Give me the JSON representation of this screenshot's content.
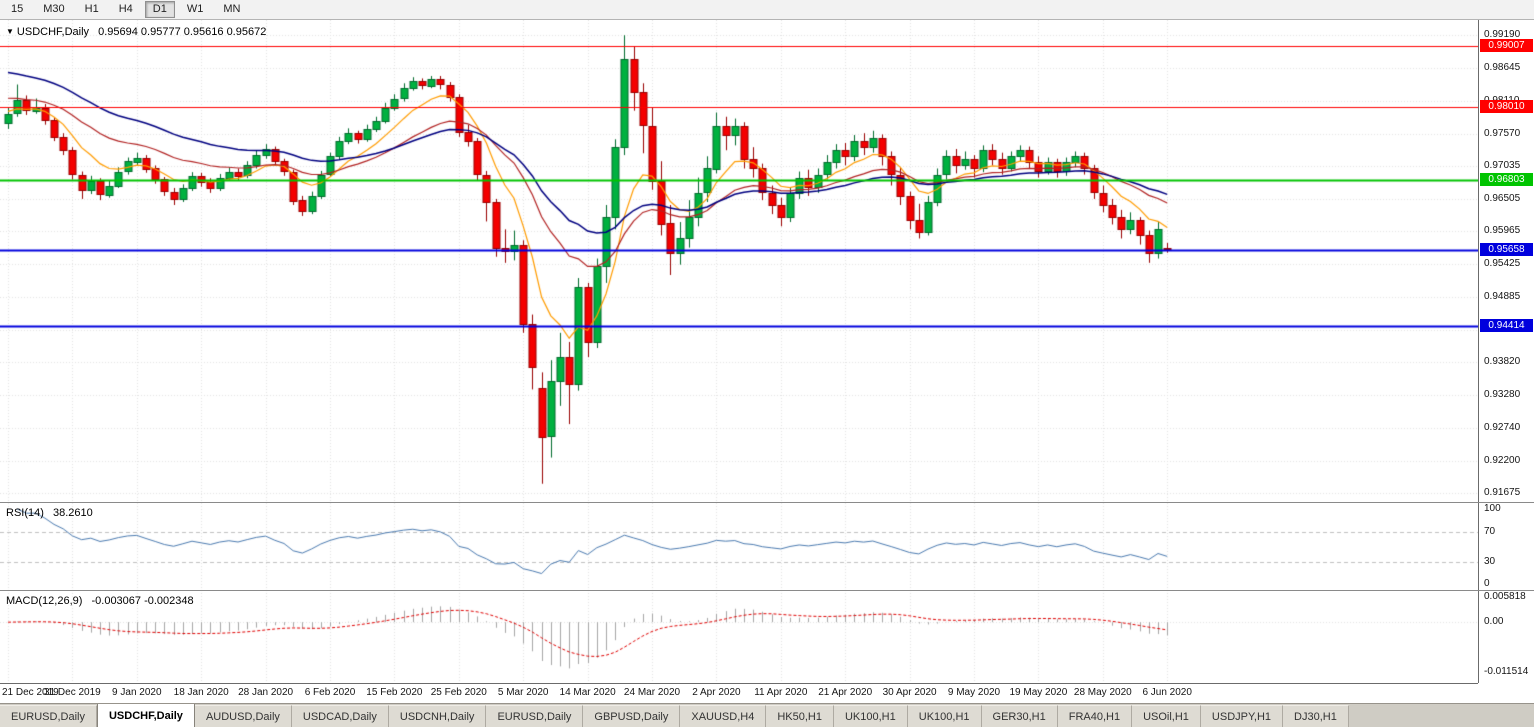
{
  "toolbar": {
    "periods": [
      {
        "label": "15",
        "active": false
      },
      {
        "label": "M30",
        "active": false
      },
      {
        "label": "H1",
        "active": false
      },
      {
        "label": "H4",
        "active": false
      },
      {
        "label": "D1",
        "active": true
      },
      {
        "label": "W1",
        "active": false
      },
      {
        "label": "MN",
        "active": false
      }
    ]
  },
  "chart": {
    "dropdown_glyph": "▼",
    "symbol_label": "USDCHF,Daily",
    "ohlc": "0.95694 0.95777 0.95616 0.95672"
  },
  "chart_data": {
    "type": "candlestick",
    "symbol": "USDCHF",
    "timeframe": "Daily",
    "ohlc_display": {
      "open": "0.95694",
      "high": "0.95777",
      "low": "0.95616",
      "close": "0.95672"
    },
    "y_axis": {
      "top_price": 0.9944,
      "bottom_price": 0.9152,
      "ticks": [
        "0.99190",
        "0.98645",
        "0.98110",
        "0.97570",
        "0.97035",
        "0.96505",
        "0.95965",
        "0.95425",
        "0.94885",
        "0.94345",
        "0.93820",
        "0.93280",
        "0.92740",
        "0.92200",
        "0.91675"
      ]
    },
    "x_axis": {
      "candles_per_label": 7,
      "labels": [
        "21 Dec 2019",
        "31 Dec 2019",
        "9 Jan 2020",
        "18 Jan 2020",
        "28 Jan 2020",
        "6 Feb 2020",
        "15 Feb 2020",
        "25 Feb 2020",
        "5 Mar 2020",
        "14 Mar 2020",
        "24 Mar 2020",
        "2 Apr 2020",
        "11 Apr 2020",
        "21 Apr 2020",
        "30 Apr 2020",
        "9 May 2020",
        "19 May 2020",
        "28 May 2020",
        "6 Jun 2020"
      ]
    },
    "hlines": [
      {
        "value": 0.99007,
        "label": "0.99007",
        "color": "#ff0000",
        "width": 1.2
      },
      {
        "value": 0.9801,
        "label": "0.98010",
        "color": "#ff0000",
        "width": 1.2
      },
      {
        "value": 0.96803,
        "label": "0.96803",
        "color": "#00c400",
        "width": 2
      },
      {
        "value": 0.95658,
        "label": "0.95658",
        "color": "#0000dd",
        "width": 2
      },
      {
        "value": 0.94414,
        "label": "0.94414",
        "color": "#0000dd",
        "width": 2
      }
    ],
    "moving_averages": [
      {
        "name": "fast",
        "period": 8,
        "color": "#ff9c00",
        "seed": 0.9795,
        "width": 1.2
      },
      {
        "name": "medium",
        "period": 21,
        "color": "#b22222",
        "seed": 0.9818,
        "width": 1.2
      },
      {
        "name": "slow",
        "period": 34,
        "color": "#000080",
        "seed": 0.9862,
        "width": 1.5
      }
    ],
    "rsi": {
      "label": "RSI(14)",
      "value_text": "38.2610",
      "period": 14,
      "color": "#4a7ab0",
      "level_lines": [
        70,
        30
      ],
      "scale_labels": [
        "100",
        "70",
        "30",
        "0"
      ]
    },
    "macd": {
      "label": "MACD(12,26,9)",
      "values_text": "-0.003067 -0.002348",
      "fast": 12,
      "slow": 26,
      "signal": 9,
      "scale_labels": [
        "0.005818",
        "0.00",
        "-0.011514"
      ],
      "scale_max": 0.005818,
      "scale_min": -0.011514,
      "hist_color": "#a6a6a6",
      "signal_color": "#e00000"
    },
    "style": {
      "up": {
        "fill": "#00b140",
        "stroke": "#006b2d"
      },
      "down": {
        "fill": "#f40000",
        "stroke": "#990000"
      },
      "grid": "#e4e4e4"
    },
    "candles": [
      [
        0.9775,
        0.98,
        0.9765,
        0.979
      ],
      [
        0.979,
        0.9838,
        0.9785,
        0.9812
      ],
      [
        0.9812,
        0.982,
        0.9788,
        0.9795
      ],
      [
        0.9795,
        0.9815,
        0.979,
        0.98
      ],
      [
        0.98,
        0.9806,
        0.9772,
        0.978
      ],
      [
        0.978,
        0.9784,
        0.9745,
        0.9752
      ],
      [
        0.9752,
        0.9758,
        0.9722,
        0.973
      ],
      [
        0.973,
        0.9735,
        0.9682,
        0.969
      ],
      [
        0.969,
        0.9695,
        0.965,
        0.9665
      ],
      [
        0.9665,
        0.9688,
        0.9658,
        0.968
      ],
      [
        0.968,
        0.9684,
        0.9648,
        0.9658
      ],
      [
        0.9658,
        0.968,
        0.9652,
        0.9672
      ],
      [
        0.9672,
        0.9702,
        0.9668,
        0.9695
      ],
      [
        0.9695,
        0.9718,
        0.969,
        0.9712
      ],
      [
        0.9712,
        0.9726,
        0.9705,
        0.9718
      ],
      [
        0.9718,
        0.9722,
        0.9693,
        0.97
      ],
      [
        0.97,
        0.9705,
        0.9675,
        0.9682
      ],
      [
        0.9682,
        0.9686,
        0.9655,
        0.9662
      ],
      [
        0.9662,
        0.9668,
        0.964,
        0.965
      ],
      [
        0.965,
        0.9674,
        0.9645,
        0.9668
      ],
      [
        0.9668,
        0.9694,
        0.9663,
        0.9688
      ],
      [
        0.9688,
        0.9693,
        0.967,
        0.9678
      ],
      [
        0.9678,
        0.9684,
        0.966,
        0.9668
      ],
      [
        0.9668,
        0.9691,
        0.9663,
        0.9685
      ],
      [
        0.9685,
        0.9702,
        0.968,
        0.9695
      ],
      [
        0.9695,
        0.97,
        0.9681,
        0.9688
      ],
      [
        0.9688,
        0.9712,
        0.9684,
        0.9705
      ],
      [
        0.9705,
        0.9729,
        0.97,
        0.9722
      ],
      [
        0.9722,
        0.974,
        0.9716,
        0.9732
      ],
      [
        0.9732,
        0.9736,
        0.9705,
        0.9712
      ],
      [
        0.9712,
        0.9716,
        0.9688,
        0.9695
      ],
      [
        0.9695,
        0.9698,
        0.964,
        0.9648
      ],
      [
        0.9648,
        0.9655,
        0.9622,
        0.963
      ],
      [
        0.963,
        0.9662,
        0.9625,
        0.9655
      ],
      [
        0.9655,
        0.9696,
        0.965,
        0.969
      ],
      [
        0.969,
        0.9726,
        0.9686,
        0.972
      ],
      [
        0.972,
        0.9752,
        0.9715,
        0.9745
      ],
      [
        0.9745,
        0.9766,
        0.974,
        0.9758
      ],
      [
        0.9758,
        0.9762,
        0.9741,
        0.9748
      ],
      [
        0.9748,
        0.9772,
        0.9744,
        0.9765
      ],
      [
        0.9765,
        0.9785,
        0.976,
        0.9778
      ],
      [
        0.9778,
        0.9808,
        0.9774,
        0.98
      ],
      [
        0.98,
        0.9822,
        0.9795,
        0.9815
      ],
      [
        0.9815,
        0.984,
        0.981,
        0.9832
      ],
      [
        0.9832,
        0.985,
        0.9828,
        0.9843
      ],
      [
        0.9843,
        0.9848,
        0.983,
        0.9836
      ],
      [
        0.9836,
        0.9852,
        0.9832,
        0.9847
      ],
      [
        0.9847,
        0.9852,
        0.983,
        0.9838
      ],
      [
        0.9838,
        0.9842,
        0.981,
        0.9818
      ],
      [
        0.9818,
        0.9822,
        0.9752,
        0.976
      ],
      [
        0.976,
        0.9772,
        0.9736,
        0.9745
      ],
      [
        0.9745,
        0.975,
        0.968,
        0.969
      ],
      [
        0.969,
        0.9696,
        0.9613,
        0.9645
      ],
      [
        0.9645,
        0.965,
        0.9555,
        0.957
      ],
      [
        0.957,
        0.96,
        0.9545,
        0.9565
      ],
      [
        0.9565,
        0.9598,
        0.9549,
        0.9575
      ],
      [
        0.9575,
        0.9582,
        0.943,
        0.9445
      ],
      [
        0.9445,
        0.946,
        0.9337,
        0.9375
      ],
      [
        0.934,
        0.9365,
        0.9182,
        0.926
      ],
      [
        0.926,
        0.9385,
        0.9225,
        0.935
      ],
      [
        0.935,
        0.943,
        0.931,
        0.939
      ],
      [
        0.939,
        0.9415,
        0.928,
        0.9345
      ],
      [
        0.9345,
        0.952,
        0.9335,
        0.9505
      ],
      [
        0.9505,
        0.9512,
        0.939,
        0.9415
      ],
      [
        0.9415,
        0.9552,
        0.9405,
        0.954
      ],
      [
        0.954,
        0.964,
        0.9512,
        0.962
      ],
      [
        0.962,
        0.9748,
        0.96,
        0.9735
      ],
      [
        0.9735,
        0.9919,
        0.9722,
        0.988
      ],
      [
        0.988,
        0.9901,
        0.9795,
        0.9825
      ],
      [
        0.9825,
        0.984,
        0.9725,
        0.977
      ],
      [
        0.977,
        0.98,
        0.9665,
        0.968
      ],
      [
        0.968,
        0.9712,
        0.959,
        0.961
      ],
      [
        0.961,
        0.964,
        0.9525,
        0.956
      ],
      [
        0.956,
        0.9612,
        0.9542,
        0.9585
      ],
      [
        0.9585,
        0.9648,
        0.957,
        0.962
      ],
      [
        0.962,
        0.9685,
        0.9605,
        0.966
      ],
      [
        0.966,
        0.972,
        0.9645,
        0.97
      ],
      [
        0.97,
        0.9792,
        0.9692,
        0.977
      ],
      [
        0.977,
        0.9785,
        0.973,
        0.9755
      ],
      [
        0.9755,
        0.9782,
        0.9738,
        0.977
      ],
      [
        0.977,
        0.9776,
        0.97,
        0.9715
      ],
      [
        0.9715,
        0.9735,
        0.9685,
        0.97
      ],
      [
        0.97,
        0.9708,
        0.9648,
        0.966
      ],
      [
        0.966,
        0.9672,
        0.9625,
        0.964
      ],
      [
        0.964,
        0.9652,
        0.9605,
        0.962
      ],
      [
        0.962,
        0.9668,
        0.9612,
        0.966
      ],
      [
        0.966,
        0.9695,
        0.965,
        0.9685
      ],
      [
        0.9685,
        0.9698,
        0.9655,
        0.967
      ],
      [
        0.967,
        0.97,
        0.966,
        0.969
      ],
      [
        0.969,
        0.9722,
        0.9682,
        0.971
      ],
      [
        0.971,
        0.974,
        0.97,
        0.973
      ],
      [
        0.973,
        0.9742,
        0.9705,
        0.972
      ],
      [
        0.972,
        0.9755,
        0.9712,
        0.9745
      ],
      [
        0.9745,
        0.9758,
        0.9722,
        0.9735
      ],
      [
        0.9735,
        0.9762,
        0.9726,
        0.975
      ],
      [
        0.975,
        0.9756,
        0.9705,
        0.972
      ],
      [
        0.972,
        0.9728,
        0.9672,
        0.969
      ],
      [
        0.969,
        0.9702,
        0.964,
        0.9655
      ],
      [
        0.9655,
        0.9662,
        0.96,
        0.9615
      ],
      [
        0.9615,
        0.9642,
        0.9585,
        0.9595
      ],
      [
        0.9595,
        0.9655,
        0.959,
        0.9645
      ],
      [
        0.9645,
        0.97,
        0.9638,
        0.969
      ],
      [
        0.969,
        0.973,
        0.9682,
        0.972
      ],
      [
        0.972,
        0.9732,
        0.9692,
        0.9705
      ],
      [
        0.9705,
        0.9728,
        0.9698,
        0.9715
      ],
      [
        0.9715,
        0.9722,
        0.9685,
        0.97
      ],
      [
        0.97,
        0.9738,
        0.9694,
        0.973
      ],
      [
        0.973,
        0.974,
        0.9705,
        0.9715
      ],
      [
        0.9715,
        0.9726,
        0.969,
        0.97
      ],
      [
        0.97,
        0.9728,
        0.9695,
        0.972
      ],
      [
        0.972,
        0.9738,
        0.9712,
        0.973
      ],
      [
        0.973,
        0.9736,
        0.97,
        0.971
      ],
      [
        0.971,
        0.972,
        0.9685,
        0.9695
      ],
      [
        0.9695,
        0.9718,
        0.969,
        0.971
      ],
      [
        0.971,
        0.9716,
        0.9685,
        0.9695
      ],
      [
        0.9695,
        0.9718,
        0.9688,
        0.971
      ],
      [
        0.971,
        0.9728,
        0.9702,
        0.972
      ],
      [
        0.972,
        0.9726,
        0.969,
        0.97
      ],
      [
        0.97,
        0.9706,
        0.965,
        0.966
      ],
      [
        0.966,
        0.9672,
        0.9628,
        0.964
      ],
      [
        0.964,
        0.965,
        0.9608,
        0.962
      ],
      [
        0.962,
        0.9632,
        0.9585,
        0.96
      ],
      [
        0.96,
        0.9628,
        0.9592,
        0.9615
      ],
      [
        0.9615,
        0.962,
        0.9575,
        0.959
      ],
      [
        0.959,
        0.9598,
        0.9545,
        0.956
      ],
      [
        0.956,
        0.9612,
        0.9552,
        0.96
      ],
      [
        0.95694,
        0.95777,
        0.95616,
        0.95672
      ]
    ]
  },
  "tabs": [
    {
      "label": "EURUSD,Daily",
      "active": false
    },
    {
      "label": "USDCHF,Daily",
      "active": true
    },
    {
      "label": "AUDUSD,Daily",
      "active": false
    },
    {
      "label": "USDCAD,Daily",
      "active": false
    },
    {
      "label": "USDCNH,Daily",
      "active": false
    },
    {
      "label": "EURUSD,Daily",
      "active": false
    },
    {
      "label": "GBPUSD,Daily",
      "active": false
    },
    {
      "label": "XAUUSD,H4",
      "active": false
    },
    {
      "label": "HK50,H1",
      "active": false
    },
    {
      "label": "UK100,H1",
      "active": false
    },
    {
      "label": "UK100,H1",
      "active": false
    },
    {
      "label": "GER30,H1",
      "active": false
    },
    {
      "label": "FRA40,H1",
      "active": false
    },
    {
      "label": "USOil,H1",
      "active": false
    },
    {
      "label": "USDJPY,H1",
      "active": false
    },
    {
      "label": "DJ30,H1",
      "active": false
    }
  ]
}
